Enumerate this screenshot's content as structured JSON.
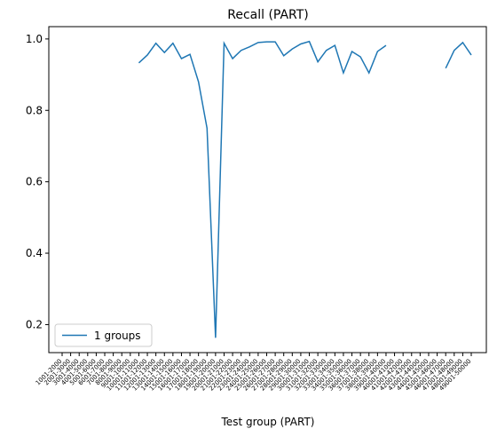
{
  "chart_data": {
    "type": "line",
    "title": "Recall (PART)",
    "xlabel": "Test group (PART)",
    "categories": [
      "1001-2000",
      "2001-3000",
      "3001-4000",
      "4001-5000",
      "5001-6000",
      "6001-7000",
      "7001-8000",
      "8001-9000",
      "9001-10000",
      "10001-11000",
      "11001-12000",
      "12001-13000",
      "13001-14000",
      "14001-15000",
      "15001-16000",
      "16001-17000",
      "17001-18000",
      "18001-19000",
      "19001-20000",
      "20001-21000",
      "21001-22000",
      "22001-23000",
      "23001-24000",
      "24001-25000",
      "25001-26000",
      "26001-27000",
      "27001-28000",
      "28001-29000",
      "29001-30000",
      "30001-31000",
      "31001-32000",
      "32001-33000",
      "33001-34000",
      "34001-35000",
      "35001-36000",
      "36001-37000",
      "37001-38000",
      "38001-39000",
      "39001-40000",
      "40001-41000",
      "41001-42000",
      "42001-43000",
      "43001-44000",
      "44001-45000",
      "45001-46000",
      "46001-47000",
      "47001-48000",
      "48001-49000",
      "49001-50000"
    ],
    "series": [
      {
        "name": "1 groups",
        "color": "#1f77b4",
        "values": [
          null,
          null,
          null,
          null,
          null,
          null,
          null,
          null,
          null,
          0.933,
          0.955,
          0.988,
          0.962,
          0.988,
          0.945,
          0.957,
          0.88,
          0.75,
          0.163,
          0.988,
          0.945,
          0.968,
          0.978,
          0.99,
          0.992,
          0.992,
          0.953,
          0.972,
          0.986,
          0.993,
          0.936,
          0.968,
          0.982,
          0.905,
          0.965,
          0.95,
          0.905,
          0.965,
          0.982,
          null,
          null,
          null,
          null,
          null,
          null,
          0.918,
          0.968,
          0.99,
          0.955
        ]
      }
    ],
    "ylim": [
      0.1215,
      1.0345
    ],
    "yticks": [
      0.2,
      0.4,
      0.6,
      0.8,
      {
        "value": 1,
        "label": "1.0"
      }
    ],
    "legend": "lower left"
  }
}
